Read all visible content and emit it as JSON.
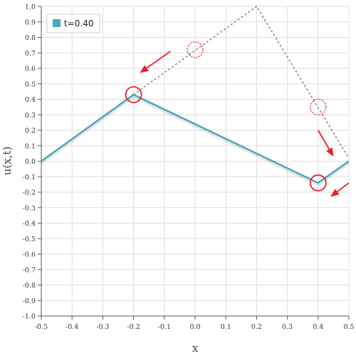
{
  "chart_data": {
    "type": "line",
    "xlabel": "x",
    "ylabel": "u(x,t)",
    "xlim": [
      -0.5,
      0.5
    ],
    "ylim": [
      -1.0,
      1.0
    ],
    "x_ticks": [
      "-0.5",
      "-0.4",
      "-0.3",
      "-0.2",
      "-0.1",
      "0.0",
      "0.1",
      "0.2",
      "0.3",
      "0.4",
      "0.5"
    ],
    "y_ticks": [
      "1.0",
      "0.9",
      "0.8",
      "0.7",
      "0.6",
      "0.5",
      "0.4",
      "0.3",
      "0.2",
      "0.1",
      "0.0",
      "-0.1",
      "-0.2",
      "-0.3",
      "-0.4",
      "-0.5",
      "-0.6",
      "-0.7",
      "-0.8",
      "-0.9",
      "-1.0"
    ],
    "grid": true,
    "legend_position": "top-left",
    "series": [
      {
        "name": "t=0.40",
        "color": "#4aa8ba",
        "style": "solid",
        "x": [
          -0.5,
          -0.2,
          0.4,
          0.5
        ],
        "y": [
          0.0,
          0.43,
          -0.14,
          0.0
        ]
      },
      {
        "color": "#888888",
        "style": "dashed",
        "x": [
          -0.2,
          0.2,
          0.5
        ],
        "y": [
          0.43,
          1.0,
          0.02
        ]
      }
    ],
    "annotations": {
      "circles": [
        {
          "x": -0.2,
          "y": 0.43,
          "style": "solid"
        },
        {
          "x": 0.4,
          "y": -0.14,
          "style": "solid"
        },
        {
          "x": 0.0,
          "y": 0.72,
          "style": "dotted"
        },
        {
          "x": 0.4,
          "y": 0.35,
          "style": "dotted"
        }
      ],
      "arrows": [
        {
          "from": [
            -0.08,
            0.71
          ],
          "to": [
            -0.18,
            0.57
          ]
        },
        {
          "from": [
            0.4,
            0.2
          ],
          "to": [
            0.45,
            0.03
          ]
        },
        {
          "from": [
            0.5,
            -0.14
          ],
          "to": [
            0.44,
            -0.23
          ]
        }
      ],
      "color": "#e8202a"
    }
  }
}
